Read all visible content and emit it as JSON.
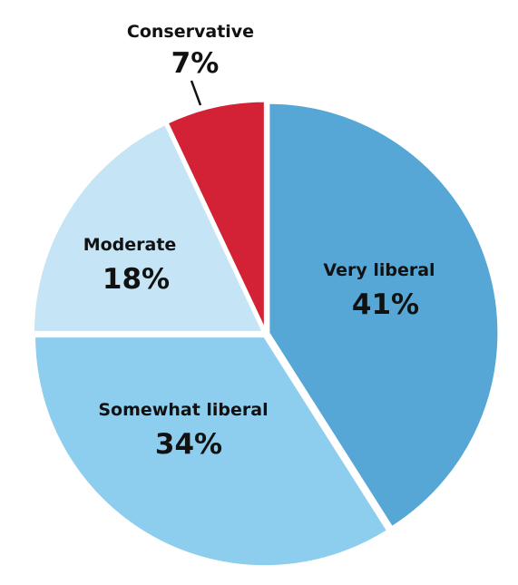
{
  "chart_data": {
    "type": "pie",
    "slices": [
      {
        "label": "Very liberal",
        "value": 41,
        "display": "41%",
        "color": "#56A6D6"
      },
      {
        "label": "Somewhat liberal",
        "value": 34,
        "display": "34%",
        "color": "#8DCDEE"
      },
      {
        "label": "Moderate",
        "value": 18,
        "display": "18%",
        "color": "#C5E4F5"
      },
      {
        "label": "Conservative",
        "value": 7,
        "display": "7%",
        "color": "#D32235"
      }
    ],
    "start": "12 o'clock",
    "direction": "clockwise",
    "separator_color": "#FFFFFF"
  }
}
